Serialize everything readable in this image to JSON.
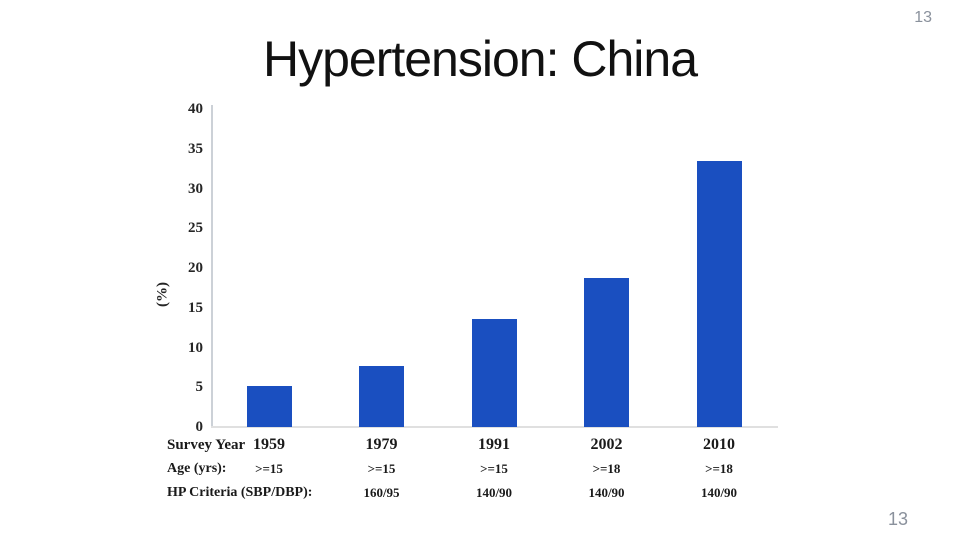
{
  "slide": {
    "title": "Hypertension: China",
    "page_number_top": "13",
    "page_number_bottom": "13"
  },
  "chart_data": {
    "type": "bar",
    "title": "Hypertension: China",
    "categories": [
      "1959",
      "1979",
      "1991",
      "2002",
      "2010"
    ],
    "values": [
      5.1,
      7.7,
      13.6,
      18.8,
      33.5
    ],
    "xlabel": "Survey Year",
    "ylabel": "(%)",
    "ylim": [
      0,
      40
    ],
    "yticks": [
      0,
      5,
      10,
      15,
      20,
      25,
      30,
      35,
      40
    ],
    "grid": false,
    "legend": "none",
    "bar_color": "#1A4FC0",
    "axis_color": "#ccd1d7"
  },
  "table": {
    "rows": [
      {
        "label": "Survey Year",
        "values": [
          "1959",
          "1979",
          "1991",
          "2002",
          "2010"
        ]
      },
      {
        "label": "Age (yrs):",
        "values": [
          ">=15",
          ">=15",
          ">=15",
          ">=18",
          ">=18"
        ]
      },
      {
        "label": "HP Criteria (SBP/DBP):",
        "values": [
          "",
          "160/95",
          "140/90",
          "140/90",
          "140/90"
        ]
      }
    ]
  }
}
